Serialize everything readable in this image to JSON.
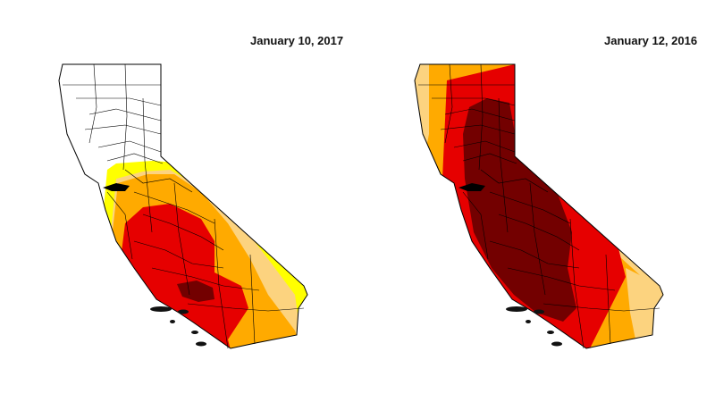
{
  "maps": [
    {
      "date": "January 10, 2017"
    },
    {
      "date": "January 12, 2016"
    }
  ],
  "colors": {
    "none": "#ffffff",
    "abnormally_dry": "#ffff00",
    "moderate": "#fcd37f",
    "severe": "#ffaa00",
    "extreme": "#e60000",
    "exceptional": "#730000",
    "county_lines": "#000000"
  }
}
